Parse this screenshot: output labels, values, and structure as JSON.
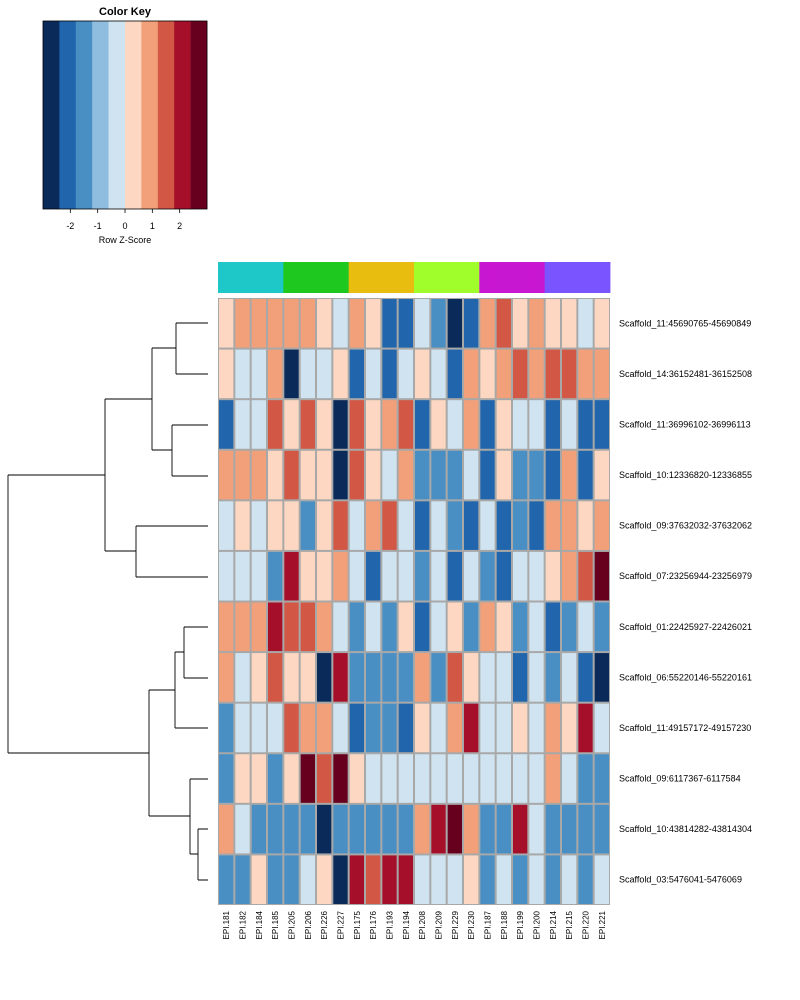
{
  "chart_data": {
    "type": "heatmap",
    "color_key": {
      "title": "Color Key",
      "xlabel": "Row Z-Score",
      "ticks": [
        -2,
        -1,
        0,
        1,
        2
      ],
      "range": [
        -3,
        3
      ],
      "colors": [
        "#0a2a5a",
        "#2166ac",
        "#4a8fc4",
        "#8fbde0",
        "#cfe3f1",
        "#fdd7c1",
        "#f2a07a",
        "#d25845",
        "#a50f2a",
        "#67001f"
      ]
    },
    "group_colors": [
      "#1fc8c8",
      "#1fc81f",
      "#e8bd10",
      "#a0ff2a",
      "#c817d0",
      "#7a55ff"
    ],
    "columns": [
      "EPI.181",
      "EPI.182",
      "EPI.184",
      "EPI.185",
      "EPI.205",
      "EPI.206",
      "EPI.226",
      "EPI.227",
      "EPI.175",
      "EPI.176",
      "EPI.193",
      "EPI.194",
      "EPI.208",
      "EPI.209",
      "EPI.229",
      "EPI.230",
      "EPI.187",
      "EPI.188",
      "EPI.199",
      "EPI.200",
      "EPI.214",
      "EPI.215",
      "EPI.220",
      "EPI.221"
    ],
    "column_groups": [
      0,
      0,
      0,
      0,
      1,
      1,
      1,
      1,
      2,
      2,
      2,
      2,
      3,
      3,
      3,
      3,
      4,
      4,
      4,
      4,
      5,
      5,
      5,
      5
    ],
    "rows": [
      "Scaffold_11:45690765-45690849",
      "Scaffold_14:36152481-36152508",
      "Scaffold_11:36996102-36996113",
      "Scaffold_10:12336820-12336855",
      "Scaffold_09:37632032-37632062",
      "Scaffold_07:23256944-23256979",
      "Scaffold_01:22425927-22426021",
      "Scaffold_06:55220146-55220161",
      "Scaffold_11:49157172-49157230",
      "Scaffold_09:6117367-6117584",
      "Scaffold_10:43814282-43814304",
      "Scaffold_03:5476041-5476069"
    ],
    "values": [
      [
        0.2,
        1,
        1,
        1,
        1,
        1,
        0.2,
        -0.4,
        1,
        0.2,
        -1.8,
        -2.3,
        -0.4,
        -1.3,
        -3,
        -1.8,
        1,
        1.6,
        0.2,
        1,
        0.2,
        0.2,
        -0.4,
        0.2
      ],
      [
        0.2,
        -0.4,
        -0.4,
        1,
        -3.5,
        -0.4,
        -0.4,
        0.2,
        -2.3,
        -0.4,
        -2.3,
        -0.4,
        0.2,
        -0.4,
        -1.8,
        1,
        0.2,
        1,
        1.6,
        1,
        1.6,
        1.6,
        1,
        1
      ],
      [
        -1.8,
        -0.4,
        -0.4,
        1.6,
        0.2,
        1.6,
        0.2,
        -3.5,
        1.6,
        0.2,
        1,
        1.6,
        -1.8,
        0.2,
        -0.4,
        1,
        -1.8,
        0.2,
        -0.4,
        -0.4,
        -1.8,
        -0.4,
        -1.8,
        -1.8
      ],
      [
        1,
        1,
        1,
        0.2,
        1.6,
        0.2,
        0.2,
        -3.5,
        1.6,
        0.2,
        -0.4,
        1,
        -1.3,
        -1.3,
        -1.3,
        -0.4,
        -1.8,
        0.2,
        -1.3,
        -1.3,
        -1.8,
        1,
        -2.3,
        0.2
      ],
      [
        -0.4,
        0.2,
        -0.4,
        0.2,
        0.2,
        -1.3,
        0.2,
        1.6,
        -0.4,
        1,
        1.6,
        -0.4,
        -1.8,
        -0.4,
        -1.3,
        -1.8,
        -0.4,
        -1.8,
        -1.3,
        -1.8,
        1,
        1,
        0.2,
        1
      ],
      [
        -0.4,
        -0.4,
        -0.4,
        -1.3,
        2.3,
        0.2,
        0.2,
        1,
        -0.4,
        -1.8,
        -0.4,
        -0.4,
        -1.3,
        -0.4,
        -1.8,
        -0.4,
        -1.3,
        -1.8,
        -0.4,
        -0.4,
        0.2,
        1,
        1.6,
        2.8
      ],
      [
        1,
        1,
        1,
        2.3,
        1.6,
        1.6,
        1,
        -0.4,
        -1.3,
        -0.4,
        -1.3,
        0.2,
        -2.3,
        -0.4,
        0.2,
        -1.3,
        1,
        0.2,
        -1.3,
        -0.4,
        -1.8,
        -1.3,
        -0.4,
        -1.3
      ],
      [
        1,
        -0.4,
        0.2,
        1.6,
        0.2,
        0.2,
        -3.5,
        2.3,
        -1.3,
        -1.3,
        -1.3,
        -1.3,
        1,
        -1.3,
        1.6,
        0.2,
        -0.4,
        -0.4,
        -1.8,
        -0.4,
        -1.3,
        -0.4,
        -1.8,
        -3.5
      ],
      [
        -1.3,
        -0.4,
        -0.4,
        -0.4,
        1.6,
        1,
        1,
        -0.4,
        -1.8,
        -1.3,
        -1.3,
        -1.8,
        0.2,
        -0.4,
        1,
        2.3,
        -0.4,
        -0.4,
        0.2,
        -0.4,
        1,
        0.2,
        2.3,
        -0.4
      ],
      [
        -1.3,
        0.2,
        0.2,
        -1.3,
        0.2,
        2.8,
        1.6,
        2.8,
        0.2,
        -0.4,
        -0.4,
        -0.4,
        -0.4,
        -0.4,
        -0.4,
        -0.4,
        -0.4,
        -0.4,
        -0.4,
        -0.4,
        1,
        -0.4,
        -1.3,
        -1.3
      ],
      [
        1,
        -0.4,
        -1.3,
        -1.3,
        -1.3,
        -1.3,
        -3.5,
        -1.3,
        -1.3,
        -1.3,
        -1.3,
        -1.3,
        1,
        2.3,
        2.8,
        1,
        -1.3,
        -1.3,
        2.3,
        -0.4,
        -1.3,
        -1.3,
        -1.3,
        -1.3
      ],
      [
        -1.3,
        -1.3,
        0.2,
        -1.3,
        -1.3,
        -0.4,
        0.2,
        -3.5,
        2.3,
        1.6,
        2.3,
        2.3,
        -0.4,
        -0.4,
        -0.4,
        0.2,
        -1.3,
        -0.4,
        -1.3,
        -0.4,
        -1.3,
        -0.4,
        -1.3,
        -0.4
      ]
    ],
    "row_order_note": "rows listed top to bottom as displayed"
  }
}
